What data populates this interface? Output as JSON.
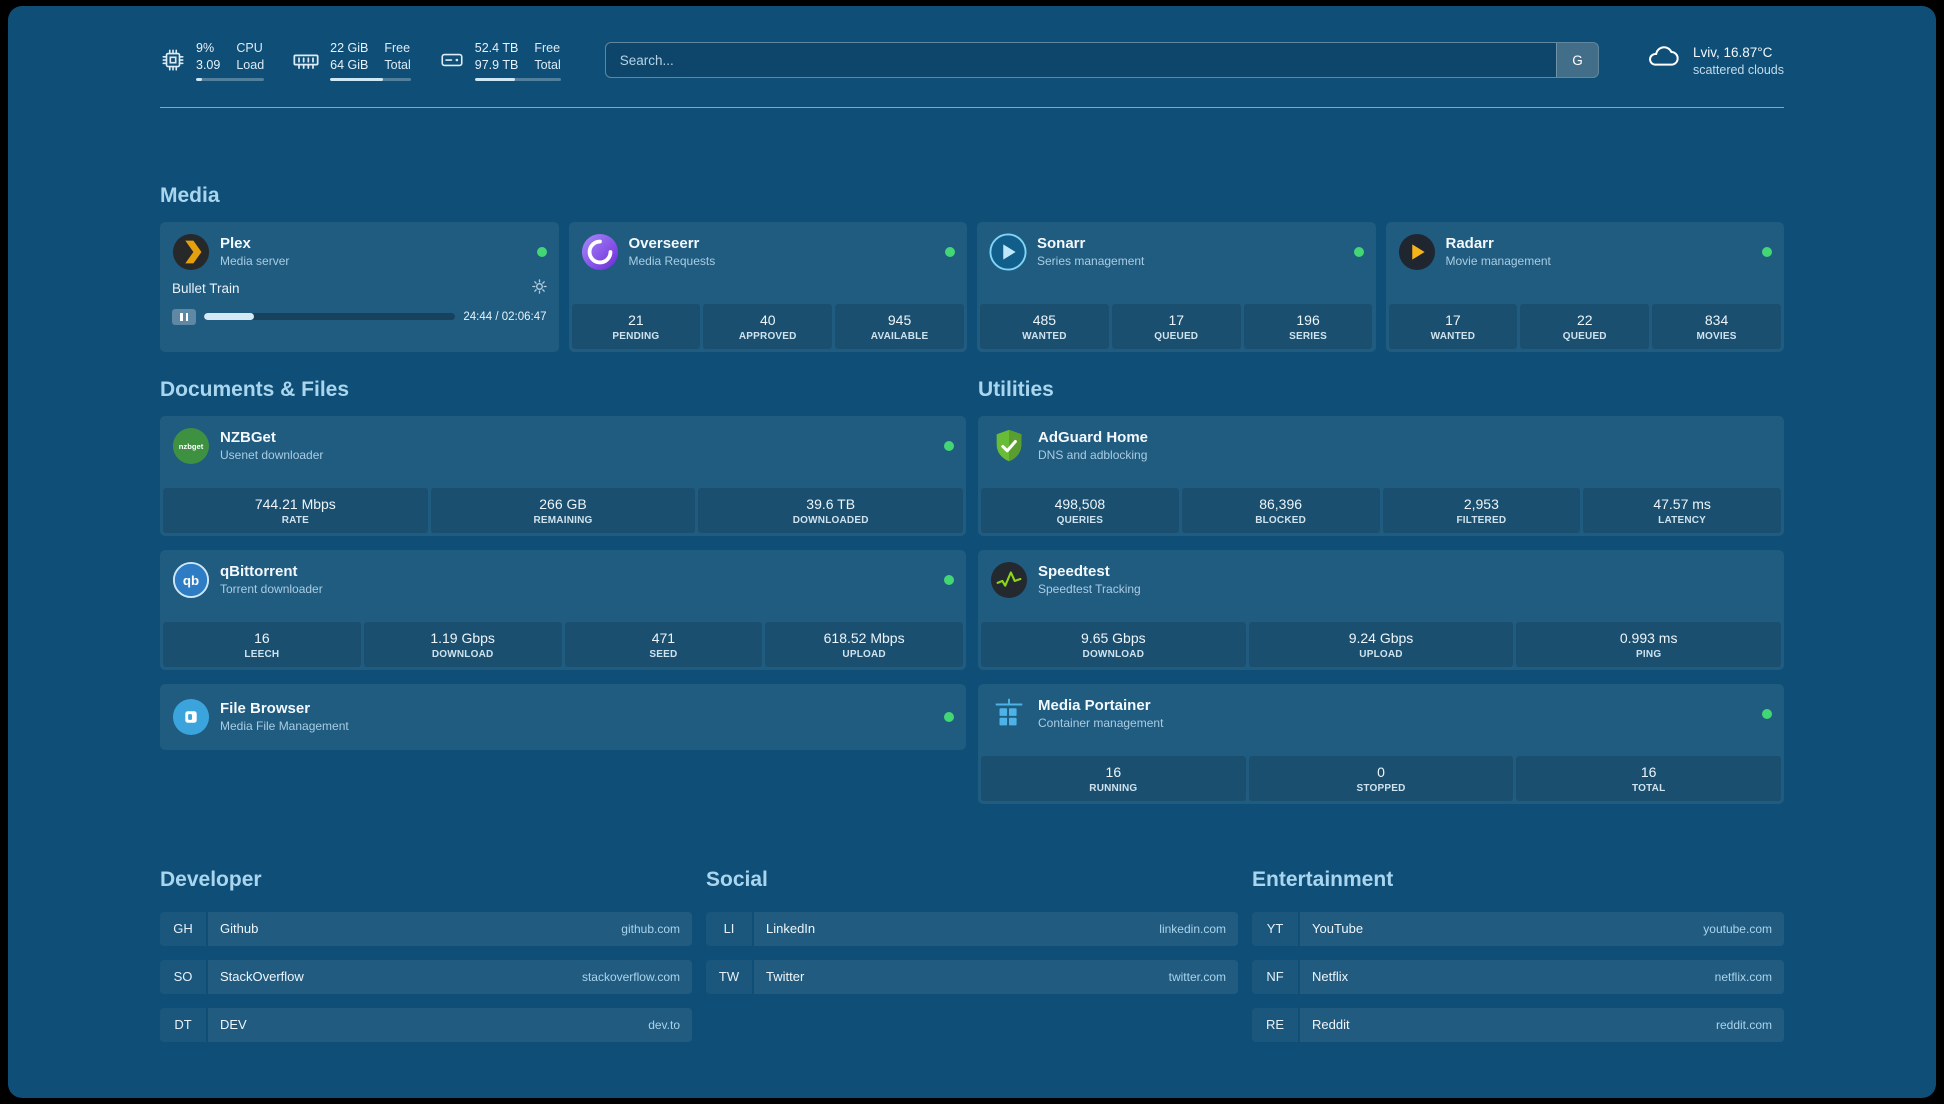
{
  "topbar": {
    "resources": [
      {
        "value": "9%",
        "value2": "3.09",
        "label": "CPU",
        "label2": "Load",
        "percent": 9
      },
      {
        "value": "22 GiB",
        "value2": "64 GiB",
        "label": "Free",
        "label2": "Total",
        "percent": 66
      },
      {
        "value": "52.4 TB",
        "value2": "97.9 TB",
        "label": "Free",
        "label2": "Total",
        "percent": 47
      }
    ],
    "search": {
      "placeholder": "Search...",
      "provider_button": "G"
    },
    "weather": {
      "location": "Lviv, 16.87°C",
      "condition": "scattered clouds"
    }
  },
  "media": {
    "title": "Media",
    "plex": {
      "name": "Plex",
      "desc": "Media server",
      "now_playing": "Bullet Train",
      "time": "24:44 / 02:06:47",
      "progress_percent": 20
    },
    "overseerr": {
      "name": "Overseerr",
      "desc": "Media Requests",
      "stats": [
        {
          "value": "21",
          "label": "PENDING"
        },
        {
          "value": "40",
          "label": "APPROVED"
        },
        {
          "value": "945",
          "label": "AVAILABLE"
        }
      ]
    },
    "sonarr": {
      "name": "Sonarr",
      "desc": "Series management",
      "stats": [
        {
          "value": "485",
          "label": "WANTED"
        },
        {
          "value": "17",
          "label": "QUEUED"
        },
        {
          "value": "196",
          "label": "SERIES"
        }
      ]
    },
    "radarr": {
      "name": "Radarr",
      "desc": "Movie management",
      "stats": [
        {
          "value": "17",
          "label": "WANTED"
        },
        {
          "value": "22",
          "label": "QUEUED"
        },
        {
          "value": "834",
          "label": "MOVIES"
        }
      ]
    }
  },
  "documents": {
    "title": "Documents & Files",
    "nzbget": {
      "name": "NZBGet",
      "desc": "Usenet downloader",
      "stats": [
        {
          "value": "744.21 Mbps",
          "label": "RATE"
        },
        {
          "value": "266 GB",
          "label": "REMAINING"
        },
        {
          "value": "39.6 TB",
          "label": "DOWNLOADED"
        }
      ]
    },
    "qbittorrent": {
      "name": "qBittorrent",
      "desc": "Torrent downloader",
      "stats": [
        {
          "value": "16",
          "label": "LEECH"
        },
        {
          "value": "1.19 Gbps",
          "label": "DOWNLOAD"
        },
        {
          "value": "471",
          "label": "SEED"
        },
        {
          "value": "618.52 Mbps",
          "label": "UPLOAD"
        }
      ]
    },
    "filebrowser": {
      "name": "File Browser",
      "desc": "Media File Management"
    }
  },
  "utilities": {
    "title": "Utilities",
    "adguard": {
      "name": "AdGuard Home",
      "desc": "DNS and adblocking",
      "stats": [
        {
          "value": "498,508",
          "label": "QUERIES"
        },
        {
          "value": "86,396",
          "label": "BLOCKED"
        },
        {
          "value": "2,953",
          "label": "FILTERED"
        },
        {
          "value": "47.57 ms",
          "label": "LATENCY"
        }
      ]
    },
    "speedtest": {
      "name": "Speedtest",
      "desc": "Speedtest Tracking",
      "stats": [
        {
          "value": "9.65 Gbps",
          "label": "DOWNLOAD"
        },
        {
          "value": "9.24 Gbps",
          "label": "UPLOAD"
        },
        {
          "value": "0.993 ms",
          "label": "PING"
        }
      ]
    },
    "portainer": {
      "name": "Media Portainer",
      "desc": "Container management",
      "stats": [
        {
          "value": "16",
          "label": "RUNNING"
        },
        {
          "value": "0",
          "label": "STOPPED"
        },
        {
          "value": "16",
          "label": "TOTAL"
        }
      ]
    }
  },
  "bookmarks": {
    "developer": {
      "title": "Developer",
      "items": [
        {
          "abbr": "GH",
          "name": "Github",
          "url": "github.com"
        },
        {
          "abbr": "SO",
          "name": "StackOverflow",
          "url": "stackoverflow.com"
        },
        {
          "abbr": "DT",
          "name": "DEV",
          "url": "dev.to"
        }
      ]
    },
    "social": {
      "title": "Social",
      "items": [
        {
          "abbr": "LI",
          "name": "LinkedIn",
          "url": "linkedin.com"
        },
        {
          "abbr": "TW",
          "name": "Twitter",
          "url": "twitter.com"
        }
      ]
    },
    "entertainment": {
      "title": "Entertainment",
      "items": [
        {
          "abbr": "YT",
          "name": "YouTube",
          "url": "youtube.com"
        },
        {
          "abbr": "NF",
          "name": "Netflix",
          "url": "netflix.com"
        },
        {
          "abbr": "RE",
          "name": "Reddit",
          "url": "reddit.com"
        }
      ]
    }
  },
  "colors": {
    "background": "#0f4e76",
    "status_online": "#43d675",
    "heading": "#a9d6ee"
  }
}
